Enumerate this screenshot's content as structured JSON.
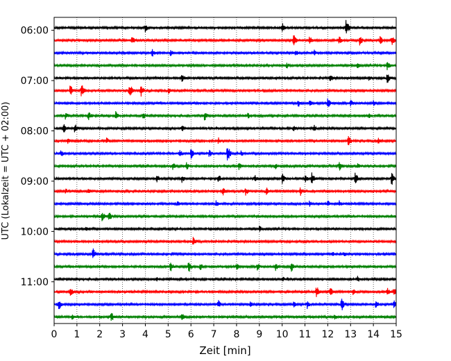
{
  "chart_data": {
    "type": "line",
    "xlabel": "Zeit  [min]",
    "ylabel": "UTC (Lokalzeit = UTC + 02:00)",
    "xlim": [
      0,
      15
    ],
    "xticks": [
      0,
      1,
      2,
      3,
      4,
      5,
      6,
      7,
      8,
      9,
      10,
      11,
      12,
      13,
      14,
      15
    ],
    "ytick_labels": [
      "06:00",
      "07:00",
      "08:00",
      "09:00",
      "10:00",
      "11:00"
    ],
    "grid": "x-dotted",
    "colors": [
      "#000000",
      "#ff0000",
      "#0000ff",
      "#008000"
    ],
    "traces": [
      {
        "start": "05:57",
        "color": "#000000",
        "events": [
          [
            4.0,
            0.5
          ],
          [
            10.0,
            0.6
          ],
          [
            12.8,
            1.0
          ]
        ]
      },
      {
        "start": "06:12",
        "color": "#ff0000",
        "events": [
          [
            3.4,
            0.6
          ],
          [
            10.5,
            0.7
          ],
          [
            11.2,
            0.5
          ],
          [
            12.5,
            0.5
          ],
          [
            13.4,
            0.6
          ],
          [
            14.3,
            0.5
          ],
          [
            14.8,
            0.6
          ]
        ]
      },
      {
        "start": "06:27",
        "color": "#0000ff",
        "events": [
          [
            4.3,
            0.5
          ],
          [
            5.1,
            0.4
          ],
          [
            10.6,
            0.4
          ],
          [
            11.4,
            0.4
          ]
        ]
      },
      {
        "start": "06:42",
        "color": "#008000",
        "events": [
          [
            10.2,
            0.4
          ],
          [
            13.3,
            0.4
          ],
          [
            14.6,
            0.6
          ]
        ]
      },
      {
        "start": "06:57",
        "color": "#000000",
        "events": [
          [
            5.6,
            0.6
          ],
          [
            12.1,
            0.5
          ],
          [
            13.8,
            0.4
          ],
          [
            14.6,
            0.7
          ]
        ]
      },
      {
        "start": "07:12",
        "color": "#ff0000",
        "events": [
          [
            0.7,
            0.7
          ],
          [
            1.2,
            0.8
          ],
          [
            3.3,
            0.9
          ],
          [
            3.8,
            0.7
          ],
          [
            5.0,
            0.4
          ]
        ]
      },
      {
        "start": "07:27",
        "color": "#0000ff",
        "events": [
          [
            10.7,
            0.5
          ],
          [
            11.2,
            0.4
          ],
          [
            12.0,
            0.7
          ],
          [
            13.0,
            0.4
          ],
          [
            14.0,
            0.4
          ]
        ]
      },
      {
        "start": "07:42",
        "color": "#008000",
        "events": [
          [
            0.5,
            0.5
          ],
          [
            1.5,
            0.6
          ],
          [
            2.7,
            0.5
          ],
          [
            3.9,
            0.5
          ],
          [
            6.6,
            0.6
          ],
          [
            8.5,
            0.4
          ],
          [
            13.8,
            0.4
          ]
        ]
      },
      {
        "start": "07:57",
        "color": "#000000",
        "events": [
          [
            0.4,
            0.7
          ],
          [
            0.9,
            0.6
          ],
          [
            5.6,
            0.4
          ],
          [
            10.5,
            0.4
          ],
          [
            11.4,
            0.4
          ]
        ]
      },
      {
        "start": "08:12",
        "color": "#ff0000",
        "events": [
          [
            0.6,
            0.4
          ],
          [
            2.3,
            0.4
          ],
          [
            7.2,
            0.4
          ],
          [
            12.9,
            0.7
          ],
          [
            14.2,
            0.4
          ]
        ]
      },
      {
        "start": "08:27",
        "color": "#0000ff",
        "events": [
          [
            0.3,
            0.4
          ],
          [
            5.5,
            0.5
          ],
          [
            6.0,
            0.7
          ],
          [
            6.8,
            0.5
          ],
          [
            7.6,
            1.0
          ],
          [
            8.2,
            0.4
          ]
        ]
      },
      {
        "start": "08:42",
        "color": "#008000",
        "events": [
          [
            5.2,
            0.5
          ],
          [
            5.8,
            0.5
          ],
          [
            8.1,
            0.5
          ],
          [
            9.7,
            0.4
          ],
          [
            12.5,
            0.6
          ],
          [
            13.3,
            0.4
          ]
        ]
      },
      {
        "start": "08:57",
        "color": "#000000",
        "events": [
          [
            4.5,
            0.5
          ],
          [
            5.6,
            0.5
          ],
          [
            7.2,
            0.6
          ],
          [
            8.8,
            0.5
          ],
          [
            10.0,
            0.6
          ],
          [
            11.0,
            0.5
          ],
          [
            11.3,
            0.7
          ],
          [
            13.2,
            0.7
          ],
          [
            14.8,
            0.8
          ]
        ]
      },
      {
        "start": "09:12",
        "color": "#ff0000",
        "events": [
          [
            0.5,
            0.4
          ],
          [
            1.5,
            0.4
          ],
          [
            7.4,
            0.6
          ],
          [
            8.4,
            0.5
          ],
          [
            9.3,
            0.5
          ],
          [
            10.8,
            0.5
          ]
        ]
      },
      {
        "start": "09:27",
        "color": "#0000ff",
        "events": [
          [
            0.8,
            0.3
          ],
          [
            5.4,
            0.4
          ],
          [
            7.1,
            0.4
          ],
          [
            11.2,
            0.4
          ],
          [
            12.0,
            0.4
          ],
          [
            12.5,
            0.4
          ]
        ]
      },
      {
        "start": "09:42",
        "color": "#008000",
        "events": [
          [
            2.1,
            0.6
          ],
          [
            2.4,
            0.6
          ]
        ]
      },
      {
        "start": "09:57",
        "color": "#000000",
        "events": [
          [
            1.4,
            0.4
          ],
          [
            9.0,
            0.4
          ]
        ]
      },
      {
        "start": "10:12",
        "color": "#ff0000",
        "events": [
          [
            6.1,
            0.6
          ]
        ]
      },
      {
        "start": "10:27",
        "color": "#0000ff",
        "events": [
          [
            1.7,
            0.7
          ],
          [
            12.2,
            0.4
          ],
          [
            12.7,
            0.4
          ]
        ]
      },
      {
        "start": "10:42",
        "color": "#008000",
        "events": [
          [
            5.1,
            0.6
          ],
          [
            5.9,
            0.7
          ],
          [
            6.4,
            0.5
          ],
          [
            8.0,
            0.5
          ],
          [
            8.9,
            0.5
          ],
          [
            9.7,
            0.5
          ],
          [
            10.4,
            0.7
          ]
        ]
      },
      {
        "start": "10:57",
        "color": "#000000",
        "events": [
          [
            4.5,
            0.3
          ],
          [
            10.0,
            0.4
          ],
          [
            13.3,
            0.4
          ]
        ]
      },
      {
        "start": "11:12",
        "color": "#ff0000",
        "events": [
          [
            0.7,
            0.6
          ],
          [
            11.5,
            0.7
          ],
          [
            12.1,
            0.6
          ],
          [
            13.1,
            0.4
          ],
          [
            14.6,
            0.5
          ],
          [
            14.9,
            0.5
          ]
        ]
      },
      {
        "start": "11:27",
        "color": "#0000ff",
        "events": [
          [
            0.2,
            0.7
          ],
          [
            7.2,
            0.5
          ],
          [
            8.6,
            0.4
          ],
          [
            10.5,
            0.4
          ],
          [
            11.1,
            0.5
          ],
          [
            12.6,
            0.8
          ],
          [
            14.1,
            0.5
          ],
          [
            14.9,
            0.5
          ]
        ]
      },
      {
        "start": "11:42",
        "color": "#008000",
        "events": [
          [
            0.8,
            0.4
          ],
          [
            2.5,
            0.6
          ],
          [
            5.6,
            0.5
          ],
          [
            12.3,
            0.4
          ]
        ]
      }
    ]
  }
}
